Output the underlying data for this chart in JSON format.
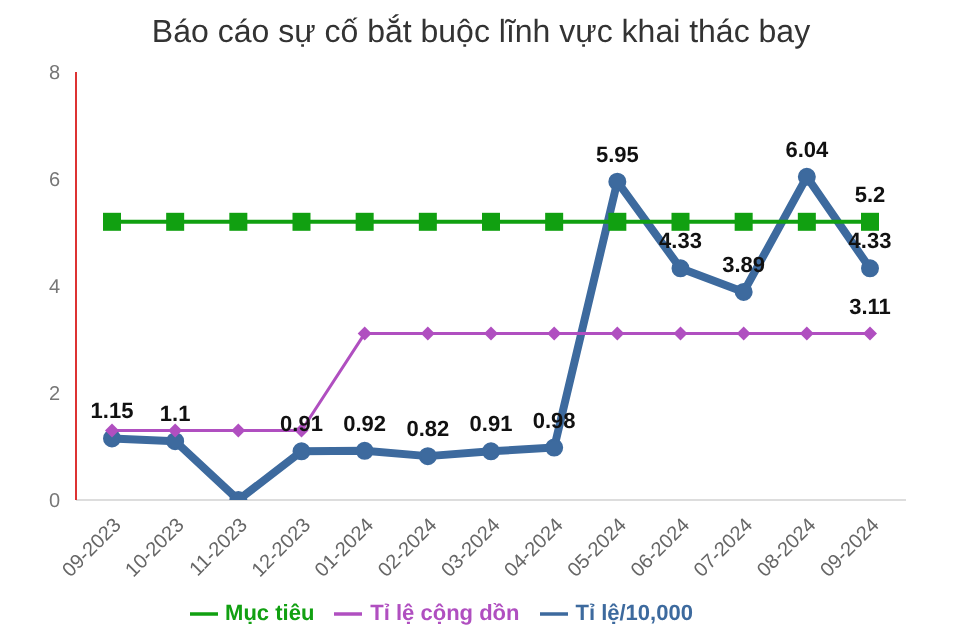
{
  "chart_data": {
    "type": "line",
    "title": "Báo cáo sự cố bắt buộc lĩnh vực khai thác bay",
    "categories": [
      "09-2023",
      "10-2023",
      "11-2023",
      "12-2023",
      "01-2024",
      "02-2024",
      "03-2024",
      "04-2024",
      "05-2024",
      "06-2024",
      "07-2024",
      "08-2024",
      "09-2024"
    ],
    "series": [
      {
        "name": "Tỉ lệ/10,000",
        "color": "#3d6a9e",
        "marker": "circle",
        "values": [
          1.15,
          1.1,
          0,
          0.91,
          0.92,
          0.82,
          0.91,
          0.98,
          5.95,
          4.33,
          3.89,
          6.04,
          4.33
        ],
        "value_labels": [
          "1.15",
          "1.1",
          null,
          "0.91",
          "0.92",
          "0.82",
          "0.91",
          "0.98",
          "5.95",
          "4.33",
          "3.89",
          "6.04",
          "4.33"
        ]
      },
      {
        "name": "Tỉ lệ cộng dồn",
        "color": "#b04fc0",
        "marker": "diamond",
        "values": [
          1.3,
          1.3,
          1.3,
          1.3,
          3.11,
          3.11,
          3.11,
          3.11,
          3.11,
          3.11,
          3.11,
          3.11,
          3.11
        ],
        "value_labels": [
          null,
          null,
          null,
          null,
          null,
          null,
          null,
          null,
          null,
          null,
          null,
          null,
          "3.11"
        ]
      },
      {
        "name": "Mục tiêu",
        "color": "#11a011",
        "marker": "square",
        "values": [
          5.2,
          5.2,
          5.2,
          5.2,
          5.2,
          5.2,
          5.2,
          5.2,
          5.2,
          5.2,
          5.2,
          5.2,
          5.2
        ],
        "value_labels": [
          null,
          null,
          null,
          null,
          null,
          null,
          null,
          null,
          null,
          null,
          null,
          null,
          "5.2"
        ]
      }
    ],
    "ylim": [
      0,
      8
    ],
    "yticks": [
      0,
      2,
      4,
      6,
      8
    ],
    "grid": false,
    "legend": "bottom"
  }
}
